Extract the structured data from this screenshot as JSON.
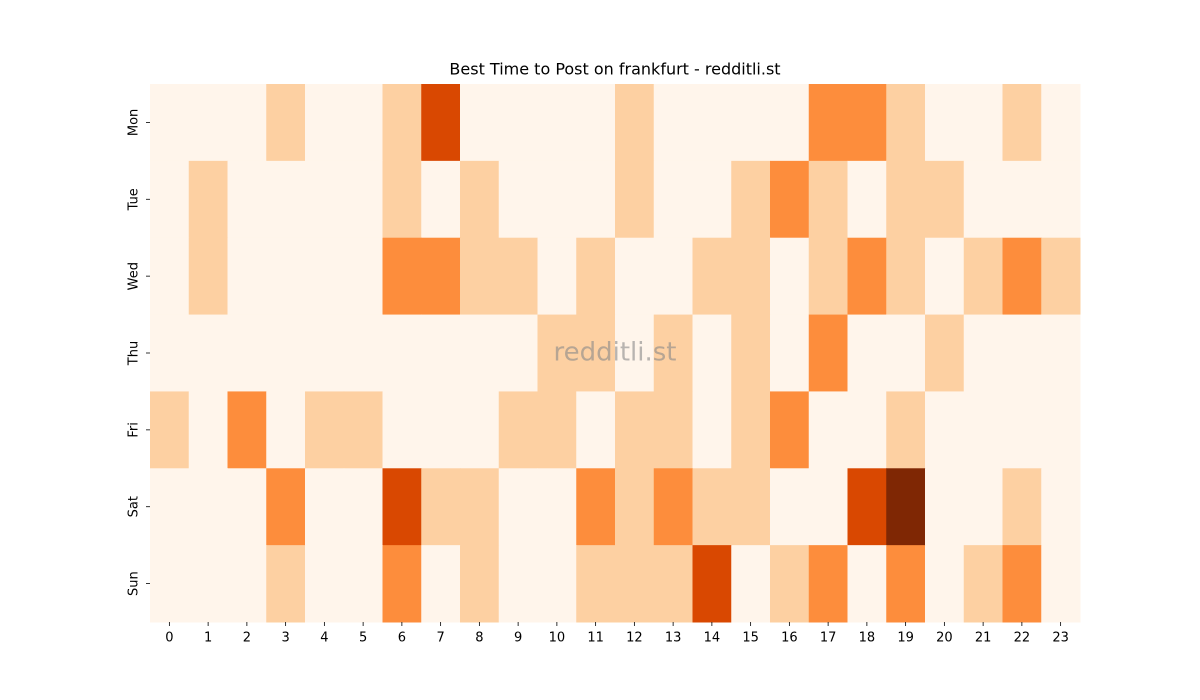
{
  "chart_data": {
    "type": "heatmap",
    "title": "Best Time to Post on frankfurt - redditli.st",
    "watermark": "redditli.st",
    "columns": [
      0,
      1,
      2,
      3,
      4,
      5,
      6,
      7,
      8,
      9,
      10,
      11,
      12,
      13,
      14,
      15,
      16,
      17,
      18,
      19,
      20,
      21,
      22,
      23
    ],
    "rows": [
      "Mon",
      "Tue",
      "Wed",
      "Thu",
      "Fri",
      "Sat",
      "Sun"
    ],
    "colors": [
      "#fff5eb",
      "#fdd0a2",
      "#fd8d3c",
      "#d94801",
      "#7f2704"
    ],
    "values": [
      [
        0,
        0,
        0,
        1,
        0,
        0,
        1,
        3,
        0,
        0,
        0,
        0,
        1,
        0,
        0,
        0,
        0,
        2,
        2,
        1,
        0,
        0,
        1,
        0
      ],
      [
        0,
        1,
        0,
        0,
        0,
        0,
        1,
        0,
        1,
        0,
        0,
        0,
        1,
        0,
        0,
        1,
        2,
        1,
        0,
        1,
        1,
        0,
        0,
        0
      ],
      [
        0,
        1,
        0,
        0,
        0,
        0,
        2,
        2,
        1,
        1,
        0,
        1,
        0,
        0,
        1,
        1,
        0,
        1,
        2,
        1,
        0,
        1,
        2,
        1
      ],
      [
        0,
        0,
        0,
        0,
        0,
        0,
        0,
        0,
        0,
        0,
        1,
        1,
        0,
        1,
        0,
        1,
        0,
        2,
        0,
        0,
        1,
        0,
        0,
        0
      ],
      [
        1,
        0,
        2,
        0,
        1,
        1,
        0,
        0,
        0,
        1,
        1,
        0,
        1,
        1,
        0,
        1,
        2,
        0,
        0,
        1,
        0,
        0,
        0,
        0
      ],
      [
        0,
        0,
        0,
        2,
        0,
        0,
        3,
        1,
        1,
        0,
        0,
        2,
        1,
        2,
        1,
        1,
        0,
        0,
        3,
        4,
        0,
        0,
        1,
        0
      ],
      [
        0,
        0,
        0,
        1,
        0,
        0,
        2,
        0,
        1,
        0,
        0,
        1,
        1,
        1,
        3,
        0,
        1,
        2,
        0,
        2,
        0,
        1,
        2,
        0
      ]
    ]
  }
}
